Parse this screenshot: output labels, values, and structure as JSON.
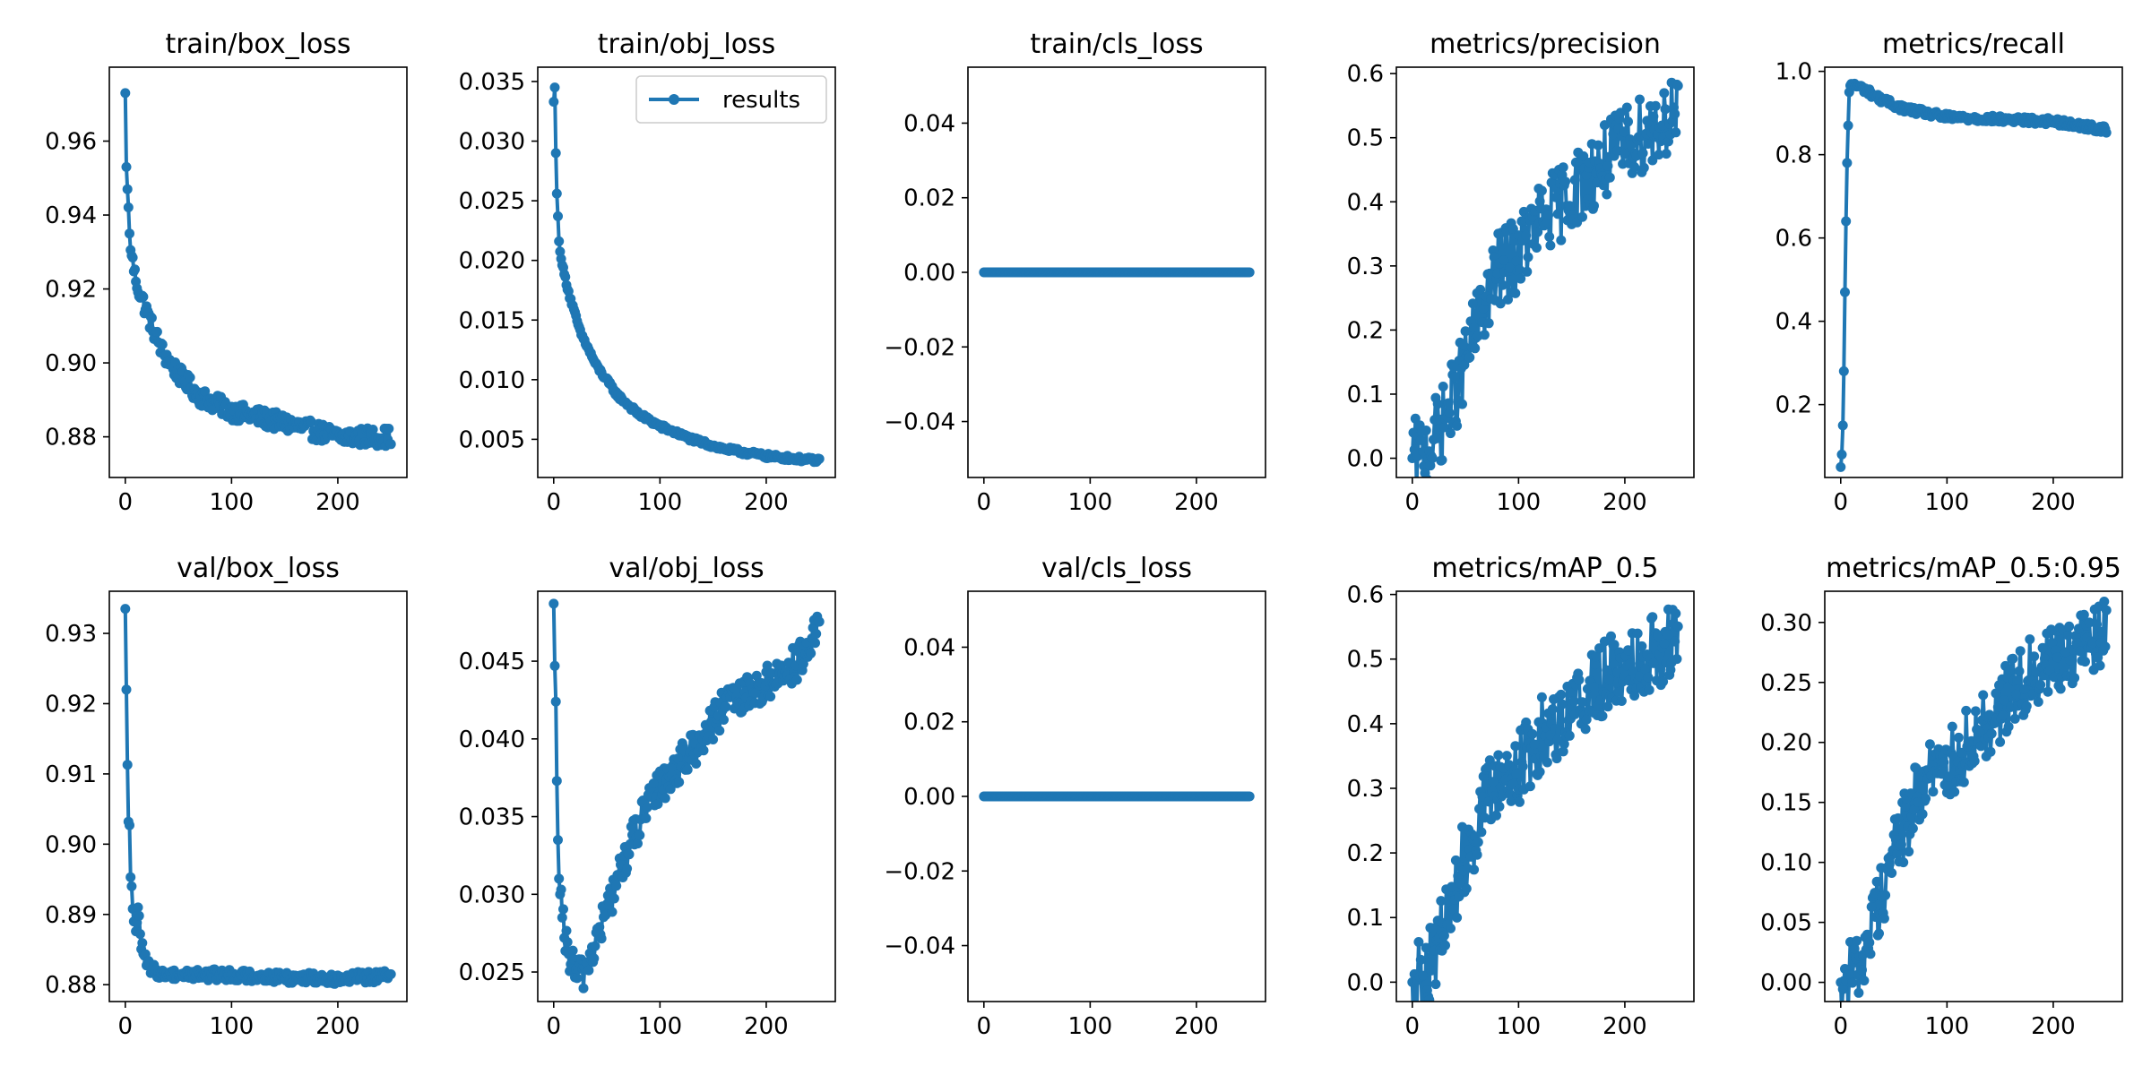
{
  "chart_data": [
    {
      "type": "line",
      "title": "train/box_loss",
      "xlim": [
        -15,
        265
      ],
      "ylim": [
        0.869,
        0.98
      ],
      "xticks": [
        0,
        100,
        200
      ],
      "xtick_labels": [
        "0",
        "100",
        "200"
      ],
      "yticks": [
        0.88,
        0.9,
        0.92,
        0.94,
        0.96
      ],
      "ytick_labels": [
        "0.88",
        "0.90",
        "0.92",
        "0.94",
        "0.96"
      ],
      "series": [
        {
          "color": "#1f77b4",
          "x_range": [
            0,
            250
          ],
          "noise": 0.0025,
          "points": [
            [
              0,
              0.973
            ],
            [
              1,
              0.953
            ],
            [
              2,
              0.947
            ],
            [
              4,
              0.935
            ],
            [
              6,
              0.929
            ],
            [
              10,
              0.922
            ],
            [
              15,
              0.918
            ],
            [
              25,
              0.91
            ],
            [
              35,
              0.903
            ],
            [
              50,
              0.897
            ],
            [
              70,
              0.891
            ],
            [
              100,
              0.887
            ],
            [
              130,
              0.885
            ],
            [
              160,
              0.883
            ],
            [
              200,
              0.88
            ],
            [
              250,
              0.88
            ]
          ]
        }
      ],
      "legend": null
    },
    {
      "type": "line",
      "title": "train/obj_loss",
      "xlim": [
        -15,
        265
      ],
      "ylim": [
        0.0018,
        0.0362
      ],
      "xticks": [
        0,
        100,
        200
      ],
      "xtick_labels": [
        "0",
        "100",
        "200"
      ],
      "yticks": [
        0.005,
        0.01,
        0.015,
        0.02,
        0.025,
        0.03,
        0.035
      ],
      "ytick_labels": [
        "0.005",
        "0.010",
        "0.015",
        "0.020",
        "0.025",
        "0.030",
        "0.035"
      ],
      "series": [
        {
          "name": "results",
          "color": "#1f77b4",
          "x_range": [
            0,
            250
          ],
          "noise": 0.0002,
          "points": [
            [
              0,
              0.0333
            ],
            [
              1,
              0.0345
            ],
            [
              2,
              0.029
            ],
            [
              3,
              0.0256
            ],
            [
              5,
              0.0216
            ],
            [
              8,
              0.0196
            ],
            [
              15,
              0.017
            ],
            [
              25,
              0.014
            ],
            [
              40,
              0.0112
            ],
            [
              60,
              0.0087
            ],
            [
              80,
              0.0071
            ],
            [
              100,
              0.0061
            ],
            [
              130,
              0.005
            ],
            [
              160,
              0.0042
            ],
            [
              200,
              0.0036
            ],
            [
              250,
              0.0032
            ]
          ]
        }
      ],
      "legend": "top-right"
    },
    {
      "type": "line",
      "title": "train/cls_loss",
      "xlim": [
        -15,
        265
      ],
      "ylim": [
        -0.055,
        0.055
      ],
      "xticks": [
        0,
        100,
        200
      ],
      "xtick_labels": [
        "0",
        "100",
        "200"
      ],
      "yticks": [
        -0.04,
        -0.02,
        0.0,
        0.02,
        0.04
      ],
      "ytick_labels": [
        "−0.04",
        "−0.02",
        "0.00",
        "0.02",
        "0.04"
      ],
      "series": [
        {
          "color": "#1f77b4",
          "x_range": [
            0,
            250
          ],
          "noise": 0,
          "points": [
            [
              0,
              0
            ],
            [
              250,
              0
            ]
          ]
        }
      ],
      "legend": null
    },
    {
      "type": "line",
      "title": "metrics/precision",
      "xlim": [
        -15,
        265
      ],
      "ylim": [
        -0.03,
        0.61
      ],
      "xticks": [
        0,
        100,
        200
      ],
      "xtick_labels": [
        "0",
        "100",
        "200"
      ],
      "yticks": [
        0.0,
        0.1,
        0.2,
        0.3,
        0.4,
        0.5,
        0.6
      ],
      "ytick_labels": [
        "0.0",
        "0.1",
        "0.2",
        "0.3",
        "0.4",
        "0.5",
        "0.6"
      ],
      "series": [
        {
          "color": "#1f77b4",
          "x_range": [
            0,
            250
          ],
          "noise": 0.06,
          "points": [
            [
              0,
              0.0
            ],
            [
              5,
              0.003
            ],
            [
              10,
              0.01
            ],
            [
              20,
              0.03
            ],
            [
              30,
              0.06
            ],
            [
              40,
              0.1
            ],
            [
              50,
              0.15
            ],
            [
              60,
              0.2
            ],
            [
              70,
              0.25
            ],
            [
              80,
              0.29
            ],
            [
              100,
              0.32
            ],
            [
              120,
              0.37
            ],
            [
              140,
              0.4
            ],
            [
              160,
              0.43
            ],
            [
              180,
              0.46
            ],
            [
              200,
              0.49
            ],
            [
              220,
              0.51
            ],
            [
              250,
              0.54
            ]
          ]
        }
      ],
      "legend": null
    },
    {
      "type": "line",
      "title": "metrics/recall",
      "xlim": [
        -15,
        265
      ],
      "ylim": [
        0.025,
        1.01
      ],
      "xticks": [
        0,
        100,
        200
      ],
      "xtick_labels": [
        "0",
        "100",
        "200"
      ],
      "yticks": [
        0.2,
        0.4,
        0.6,
        0.8,
        1.0
      ],
      "ytick_labels": [
        "0.2",
        "0.4",
        "0.6",
        "0.8",
        "1.0"
      ],
      "series": [
        {
          "color": "#1f77b4",
          "x_range": [
            0,
            250
          ],
          "noise": 0.008,
          "points": [
            [
              0,
              0.05
            ],
            [
              1,
              0.08
            ],
            [
              2,
              0.15
            ],
            [
              3,
              0.28
            ],
            [
              4,
              0.47
            ],
            [
              5,
              0.64
            ],
            [
              6,
              0.78
            ],
            [
              7,
              0.87
            ],
            [
              8,
              0.95
            ],
            [
              10,
              0.97
            ],
            [
              20,
              0.96
            ],
            [
              40,
              0.93
            ],
            [
              60,
              0.91
            ],
            [
              80,
              0.9
            ],
            [
              100,
              0.89
            ],
            [
              150,
              0.885
            ],
            [
              200,
              0.88
            ],
            [
              250,
              0.86
            ]
          ]
        }
      ],
      "legend": null
    },
    {
      "type": "line",
      "title": "val/box_loss",
      "xlim": [
        -15,
        265
      ],
      "ylim": [
        0.8776,
        0.936
      ],
      "xticks": [
        0,
        100,
        200
      ],
      "xtick_labels": [
        "0",
        "100",
        "200"
      ],
      "yticks": [
        0.88,
        0.89,
        0.9,
        0.91,
        0.92,
        0.93
      ],
      "ytick_labels": [
        "0.88",
        "0.89",
        "0.90",
        "0.91",
        "0.92",
        "0.93"
      ],
      "series": [
        {
          "color": "#1f77b4",
          "x_range": [
            0,
            250
          ],
          "noise": 0.0008,
          "points": [
            [
              0,
              0.9335
            ],
            [
              1,
              0.922
            ],
            [
              2,
              0.9113
            ],
            [
              3,
              0.9032
            ],
            [
              4,
              0.9027
            ],
            [
              5,
              0.8953
            ],
            [
              6,
              0.894
            ],
            [
              7,
              0.8908
            ],
            [
              8,
              0.889
            ],
            [
              10,
              0.8876
            ],
            [
              12,
              0.891
            ],
            [
              15,
              0.8858
            ],
            [
              20,
              0.883
            ],
            [
              25,
              0.8822
            ],
            [
              35,
              0.8815
            ],
            [
              50,
              0.8815
            ],
            [
              80,
              0.8814
            ],
            [
              100,
              0.8814
            ],
            [
              150,
              0.881
            ],
            [
              200,
              0.8809
            ],
            [
              250,
              0.8812
            ]
          ]
        }
      ],
      "legend": null
    },
    {
      "type": "line",
      "title": "val/obj_loss",
      "xlim": [
        -15,
        265
      ],
      "ylim": [
        0.0231,
        0.0495
      ],
      "xticks": [
        0,
        100,
        200
      ],
      "xtick_labels": [
        "0",
        "100",
        "200"
      ],
      "yticks": [
        0.025,
        0.03,
        0.035,
        0.04,
        0.045
      ],
      "ytick_labels": [
        "0.025",
        "0.030",
        "0.035",
        "0.040",
        "0.045"
      ],
      "series": [
        {
          "color": "#1f77b4",
          "x_range": [
            0,
            250
          ],
          "noise": 0.0012,
          "points": [
            [
              0,
              0.0487
            ],
            [
              1,
              0.0447
            ],
            [
              2,
              0.0424
            ],
            [
              3,
              0.0373
            ],
            [
              4,
              0.0335
            ],
            [
              5,
              0.031
            ],
            [
              6,
              0.03
            ],
            [
              8,
              0.0285
            ],
            [
              10,
              0.0272
            ],
            [
              15,
              0.026
            ],
            [
              20,
              0.025
            ],
            [
              25,
              0.0247
            ],
            [
              30,
              0.0253
            ],
            [
              40,
              0.027
            ],
            [
              60,
              0.031
            ],
            [
              80,
              0.0345
            ],
            [
              100,
              0.037
            ],
            [
              130,
              0.0392
            ],
            [
              160,
              0.042
            ],
            [
              200,
              0.0435
            ],
            [
              240,
              0.0455
            ],
            [
              250,
              0.0475
            ]
          ]
        }
      ],
      "legend": null
    },
    {
      "type": "line",
      "title": "val/cls_loss",
      "xlim": [
        -15,
        265
      ],
      "ylim": [
        -0.055,
        0.055
      ],
      "xticks": [
        0,
        100,
        200
      ],
      "xtick_labels": [
        "0",
        "100",
        "200"
      ],
      "yticks": [
        -0.04,
        -0.02,
        0.0,
        0.02,
        0.04
      ],
      "ytick_labels": [
        "−0.04",
        "−0.02",
        "0.00",
        "0.02",
        "0.04"
      ],
      "series": [
        {
          "color": "#1f77b4",
          "x_range": [
            0,
            250
          ],
          "noise": 0,
          "points": [
            [
              0,
              0
            ],
            [
              250,
              0
            ]
          ]
        }
      ],
      "legend": null
    },
    {
      "type": "line",
      "title": "metrics/mAP_0.5",
      "xlim": [
        -15,
        265
      ],
      "ylim": [
        -0.03,
        0.605
      ],
      "xticks": [
        0,
        100,
        200
      ],
      "xtick_labels": [
        "0",
        "100",
        "200"
      ],
      "yticks": [
        0.0,
        0.1,
        0.2,
        0.3,
        0.4,
        0.5,
        0.6
      ],
      "ytick_labels": [
        "0.0",
        "0.1",
        "0.2",
        "0.3",
        "0.4",
        "0.5",
        "0.6"
      ],
      "series": [
        {
          "color": "#1f77b4",
          "x_range": [
            0,
            250
          ],
          "noise": 0.06,
          "points": [
            [
              0,
              0.0
            ],
            [
              5,
              0.003
            ],
            [
              10,
              0.01
            ],
            [
              20,
              0.04
            ],
            [
              30,
              0.08
            ],
            [
              40,
              0.14
            ],
            [
              50,
              0.2
            ],
            [
              60,
              0.24
            ],
            [
              70,
              0.28
            ],
            [
              80,
              0.31
            ],
            [
              100,
              0.33
            ],
            [
              120,
              0.38
            ],
            [
              140,
              0.41
            ],
            [
              160,
              0.44
            ],
            [
              180,
              0.47
            ],
            [
              200,
              0.49
            ],
            [
              220,
              0.51
            ],
            [
              250,
              0.53
            ]
          ]
        }
      ],
      "legend": null
    },
    {
      "type": "line",
      "title": "metrics/mAP_0.5:0.95",
      "xlim": [
        -15,
        265
      ],
      "ylim": [
        -0.016,
        0.326
      ],
      "xticks": [
        0,
        100,
        200
      ],
      "xtick_labels": [
        "0",
        "100",
        "200"
      ],
      "yticks": [
        0.0,
        0.05,
        0.1,
        0.15,
        0.2,
        0.25,
        0.3
      ],
      "ytick_labels": [
        "0.00",
        "0.05",
        "0.10",
        "0.15",
        "0.20",
        "0.25",
        "0.30"
      ],
      "series": [
        {
          "color": "#1f77b4",
          "x_range": [
            0,
            250
          ],
          "noise": 0.03,
          "points": [
            [
              0,
              0.0
            ],
            [
              5,
              0.002
            ],
            [
              10,
              0.006
            ],
            [
              20,
              0.02
            ],
            [
              30,
              0.05
            ],
            [
              40,
              0.08
            ],
            [
              50,
              0.11
            ],
            [
              60,
              0.13
            ],
            [
              70,
              0.15
            ],
            [
              80,
              0.17
            ],
            [
              100,
              0.18
            ],
            [
              120,
              0.2
            ],
            [
              140,
              0.22
            ],
            [
              160,
              0.24
            ],
            [
              180,
              0.26
            ],
            [
              200,
              0.27
            ],
            [
              220,
              0.28
            ],
            [
              250,
              0.29
            ]
          ]
        }
      ],
      "legend": null
    }
  ]
}
